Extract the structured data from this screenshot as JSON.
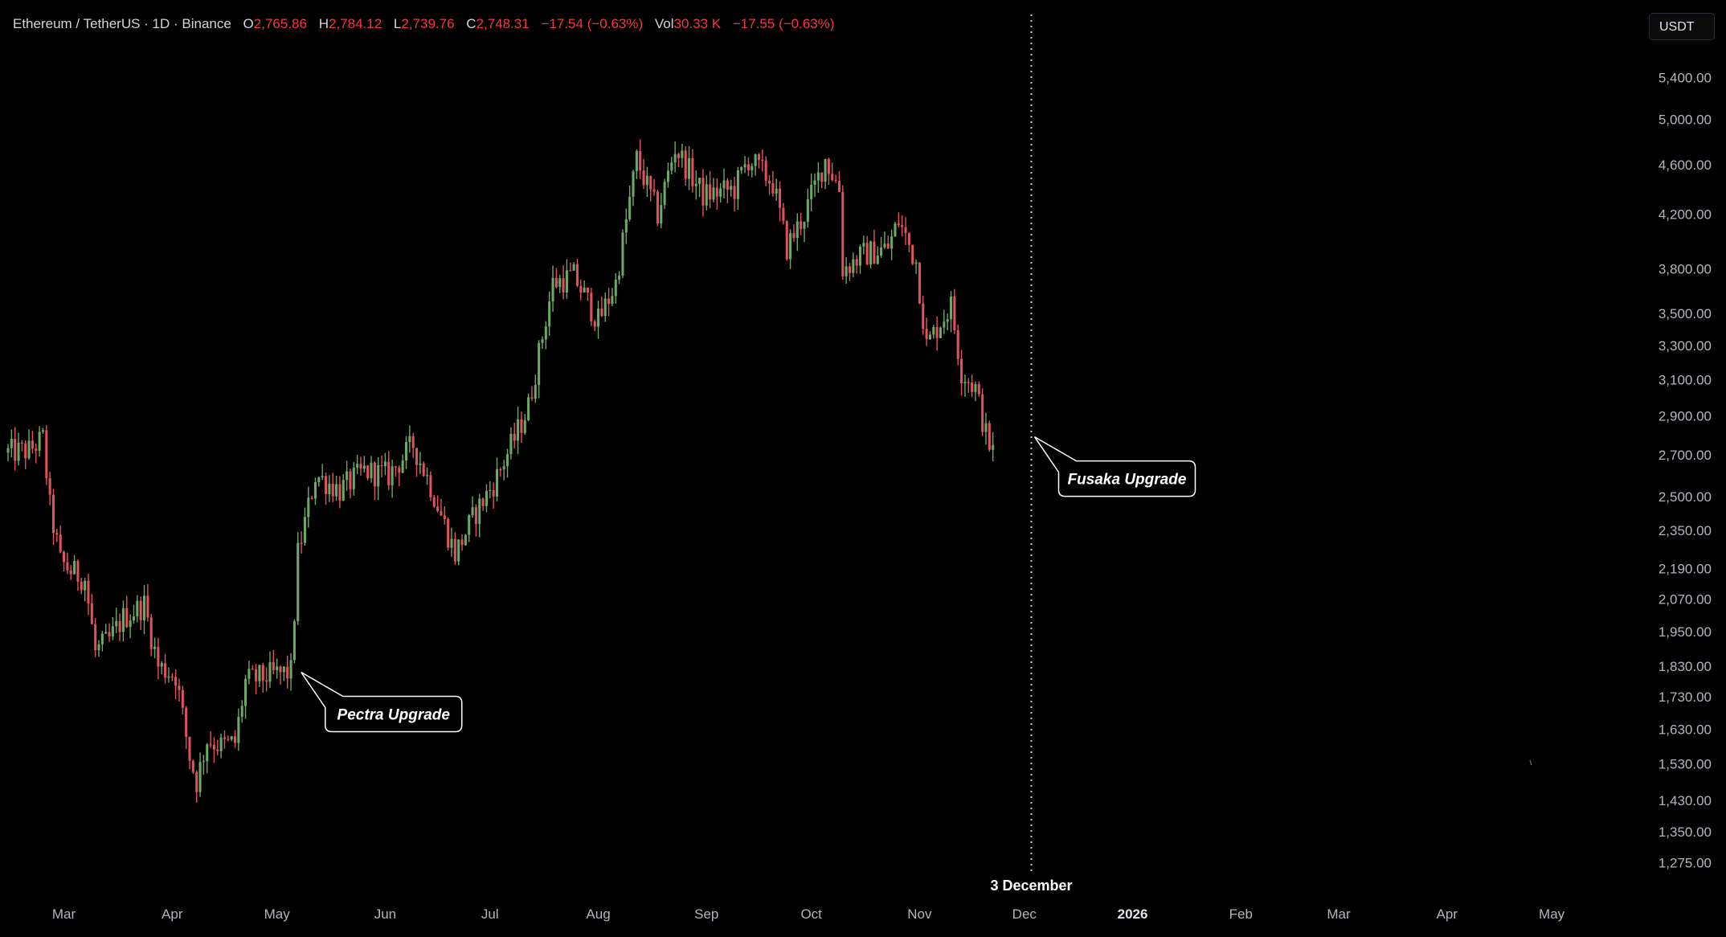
{
  "legend": {
    "symbol": "Ethereum / TetherUS · 1D · Binance",
    "o_key": "O",
    "o_val": "2,765.86",
    "h_key": "H",
    "h_val": "2,784.12",
    "l_key": "L",
    "l_val": "2,739.76",
    "c_key": "C",
    "c_val": "2,748.31",
    "change": "−17.54 (−0.63%)",
    "vol_key": "Vol",
    "vol_val": "30.33 K",
    "vol_change": "−17.55 (−0.63%)"
  },
  "currency_button": "USDT",
  "chart_data": {
    "type": "candlestick",
    "y_scale": "log",
    "ylim": [
      1230,
      5700
    ],
    "y_ticks": [
      "5,400.00",
      "5,000.00",
      "4,600.00",
      "4,200.00",
      "3,800.00",
      "3,500.00",
      "3,300.00",
      "3,100.00",
      "2,900.00",
      "2,700.00",
      "2,500.00",
      "2,350.00",
      "2,190.00",
      "2,070.00",
      "1,950.00",
      "1,830.00",
      "1,730.00",
      "1,630.00",
      "1,530.00",
      "1,430.00",
      "1,350.00",
      "1,275.00"
    ],
    "x_ticks": [
      "Mar",
      "Apr",
      "May",
      "Jun",
      "Jul",
      "Aug",
      "Sep",
      "Oct",
      "Nov",
      "Dec",
      "2026",
      "Feb",
      "Mar",
      "Apr",
      "May"
    ],
    "x_ticks_bold": [
      "2026"
    ],
    "x_range_days": [
      "2025-02-13",
      "2026-05-18"
    ],
    "marker": {
      "date": "2025-12-03",
      "label": "3 December"
    },
    "up_color": "#6ca965",
    "down_color": "#e0525c",
    "anchors": [
      [
        "2025-02-13",
        2710
      ],
      [
        "2025-02-20",
        2720
      ],
      [
        "2025-02-24",
        2780
      ],
      [
        "2025-02-26",
        2450
      ],
      [
        "2025-03-01",
        2220
      ],
      [
        "2025-03-04",
        2180
      ],
      [
        "2025-03-08",
        2150
      ],
      [
        "2025-03-11",
        1880
      ],
      [
        "2025-03-15",
        1920
      ],
      [
        "2025-03-19",
        2000
      ],
      [
        "2025-03-25",
        2050
      ],
      [
        "2025-03-29",
        1830
      ],
      [
        "2025-04-03",
        1800
      ],
      [
        "2025-04-07",
        1550
      ],
      [
        "2025-04-09",
        1480
      ],
      [
        "2025-04-12",
        1600
      ],
      [
        "2025-04-16",
        1580
      ],
      [
        "2025-04-20",
        1590
      ],
      [
        "2025-04-23",
        1780
      ],
      [
        "2025-04-30",
        1800
      ],
      [
        "2025-05-06",
        1810
      ],
      [
        "2025-05-08",
        2250
      ],
      [
        "2025-05-13",
        2600
      ],
      [
        "2025-05-20",
        2530
      ],
      [
        "2025-05-27",
        2620
      ],
      [
        "2025-06-03",
        2600
      ],
      [
        "2025-06-10",
        2750
      ],
      [
        "2025-06-15",
        2550
      ],
      [
        "2025-06-22",
        2250
      ],
      [
        "2025-06-28",
        2430
      ],
      [
        "2025-07-03",
        2560
      ],
      [
        "2025-07-09",
        2780
      ],
      [
        "2025-07-13",
        2950
      ],
      [
        "2025-07-20",
        3700
      ],
      [
        "2025-07-26",
        3750
      ],
      [
        "2025-08-02",
        3450
      ],
      [
        "2025-08-07",
        3700
      ],
      [
        "2025-08-13",
        4650
      ],
      [
        "2025-08-19",
        4200
      ],
      [
        "2025-08-24",
        4750
      ],
      [
        "2025-09-01",
        4350
      ],
      [
        "2025-09-10",
        4400
      ],
      [
        "2025-09-14",
        4650
      ],
      [
        "2025-09-21",
        4450
      ],
      [
        "2025-09-25",
        3950
      ],
      [
        "2025-09-30",
        4200
      ],
      [
        "2025-10-06",
        4650
      ],
      [
        "2025-10-10",
        4400
      ],
      [
        "2025-10-11",
        3800
      ],
      [
        "2025-10-17",
        3900
      ],
      [
        "2025-10-24",
        3950
      ],
      [
        "2025-10-27",
        4150
      ],
      [
        "2025-11-01",
        3850
      ],
      [
        "2025-11-04",
        3300
      ],
      [
        "2025-11-08",
        3450
      ],
      [
        "2025-11-11",
        3550
      ],
      [
        "2025-11-14",
        3150
      ],
      [
        "2025-11-18",
        3050
      ],
      [
        "2025-11-21",
        2800
      ],
      [
        "2025-11-22",
        2748
      ]
    ],
    "callouts": [
      {
        "label": "Pectra Upgrade",
        "date": "2025-05-07",
        "price": 1810
      },
      {
        "label": "Fusaka Upgrade",
        "date": "2025-12-03",
        "price": 2790
      }
    ]
  }
}
